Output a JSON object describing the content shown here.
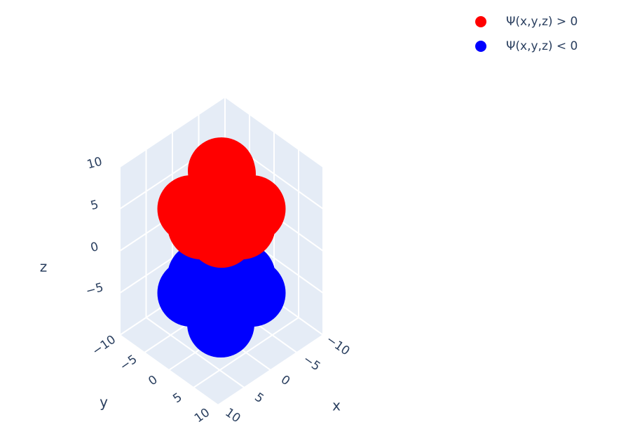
{
  "chart_data": {
    "type": "scatter3d",
    "series": [
      {
        "name": "Ψ(x,y,z) > 0",
        "color": "#ff0000",
        "x": [
          0,
          3,
          -3,
          3,
          -3,
          0,
          0,
          2,
          -2,
          2,
          -2
        ],
        "y": [
          0,
          3,
          -3,
          -3,
          3,
          0,
          0,
          2,
          -2,
          -2,
          2
        ],
        "z": [
          5,
          5,
          5,
          5,
          5,
          9.5,
          2,
          7.5,
          7.5,
          3,
          3
        ]
      },
      {
        "name": "Ψ(x,y,z) < 0",
        "color": "#0000ff",
        "x": [
          0,
          3,
          -3,
          3,
          -3,
          0,
          0,
          2,
          -2,
          2,
          -2
        ],
        "y": [
          0,
          3,
          -3,
          -3,
          3,
          0,
          0,
          2,
          -2,
          -2,
          2
        ],
        "z": [
          -5,
          -5,
          -5,
          -5,
          -5,
          -8,
          -2,
          -7,
          -7,
          -3,
          -3
        ]
      }
    ],
    "xlabel": "x",
    "ylabel": "y",
    "zlabel": "z",
    "xlim": [
      -10,
      10
    ],
    "ylim": [
      -10,
      10
    ],
    "zlim": [
      -10,
      10
    ],
    "xticks": [
      {
        "value": -10,
        "label": "−10"
      },
      {
        "value": -5,
        "label": "−5"
      },
      0,
      5,
      10
    ],
    "yticks": [
      {
        "value": -10,
        "label": "−10"
      },
      {
        "value": -5,
        "label": "−5"
      },
      0,
      5,
      10
    ],
    "zticks": [
      {
        "value": -5,
        "label": "−5"
      },
      0,
      5,
      10
    ],
    "grid": true
  }
}
